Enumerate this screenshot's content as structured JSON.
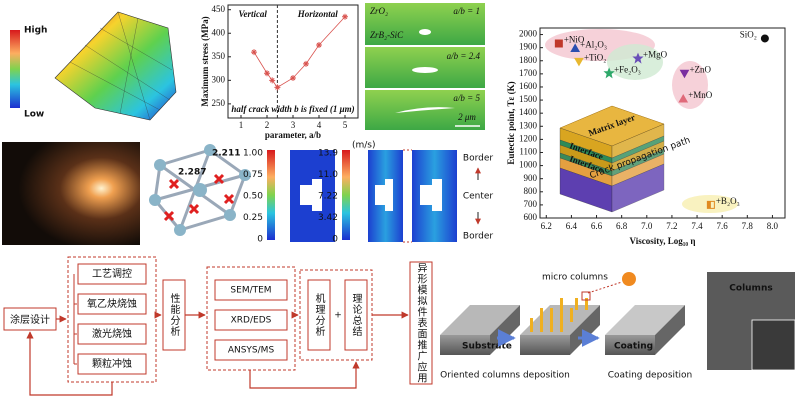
{
  "fe_model": {
    "high": "High",
    "low": "Low"
  },
  "stress_chart": {
    "type": "line",
    "y_label": "Maximum stress (MPa)",
    "x_label": "parameter, a/b",
    "left_region": "Vertical",
    "right_region": "Horizontal",
    "note": "half crack width b is fixed (1 μm)",
    "x": [
      1.5,
      2,
      2.2,
      2.4,
      3,
      3.5,
      4,
      5
    ],
    "values": [
      360,
      315,
      300,
      285,
      305,
      335,
      375,
      435
    ],
    "color": "#d9534f",
    "xlim": [
      0.5,
      5.5
    ],
    "ylim": [
      220,
      460
    ],
    "xticks": [
      1,
      2,
      3,
      4,
      5
    ],
    "yticks": [
      250,
      300,
      350,
      400,
      450
    ],
    "divider_x": 2.4
  },
  "crack_images": {
    "matrix": "ZrO₂",
    "coating": "ZrB₂-SiC",
    "ratio_1": "a/b = 1",
    "ratio_2": "a/b = 2.4",
    "ratio_3": "a/b = 5",
    "scale": "2 μm"
  },
  "eutectic_chart": {
    "type": "scatter",
    "y_label": "Eutectic point, Tε (K)",
    "x_label": "Viscosity, Log₁₀ η",
    "xlim": [
      6.15,
      8.1
    ],
    "ylim": [
      600,
      2050
    ],
    "xticks": [
      6.2,
      6.4,
      6.6,
      6.8,
      {
        "value": 7,
        "label": "7.0"
      },
      7.2,
      7.4,
      7.6,
      7.8,
      {
        "value": 8,
        "label": "8.0"
      }
    ],
    "yticks": [
      600,
      700,
      800,
      900,
      1000,
      1100,
      1200,
      1300,
      1400,
      1500,
      1600,
      1700,
      1800,
      1900,
      2000
    ],
    "points": [
      {
        "name": "+NiO",
        "x": 6.3,
        "y": 1932,
        "color": "#c0392b",
        "marker": "square"
      },
      {
        "name": "+Al₂O₃",
        "x": 6.43,
        "y": 1894,
        "color": "#2c4fb0",
        "marker": "triangle"
      },
      {
        "name": "+TiO₂",
        "x": 6.46,
        "y": 1795,
        "color": "#e8b830",
        "marker": "triangle-down"
      },
      {
        "name": "+MgO",
        "x": 6.93,
        "y": 1818,
        "color": "#6a4fb8",
        "marker": "star"
      },
      {
        "name": "+Fe₂O₃",
        "x": 6.7,
        "y": 1705,
        "color": "#2ea86a",
        "marker": "star"
      },
      {
        "name": "+ZnO",
        "x": 7.3,
        "y": 1705,
        "color": "#7b2fa0",
        "marker": "triangle-down"
      },
      {
        "name": "+MnO",
        "x": 7.29,
        "y": 1508,
        "color": "#e06a7a",
        "marker": "triangle"
      },
      {
        "name": "+B₂O₃",
        "x": 7.51,
        "y": 700,
        "color": "#e08a20",
        "marker": "half-square"
      },
      {
        "name": "SiO₂",
        "x": 7.94,
        "y": 1970,
        "color": "#111111",
        "marker": "circle"
      }
    ],
    "inset": {
      "top": "Matrix layer",
      "interface_1": "Interface",
      "interface_2": "Interface",
      "crack": "Crack propagation path"
    }
  },
  "crystal": {
    "bond_a": "2.211",
    "bond_b": "2.287"
  },
  "colorbar_ratio": [
    "1.00",
    "0.75",
    "0.50",
    "0.25",
    "0"
  ],
  "colorbar_speed": {
    "unit": "(m/s)",
    "ticks": [
      "13.9",
      "11.0",
      "7.22",
      "3.42",
      "0"
    ]
  },
  "simulation": {
    "border_top": "Border",
    "center": "Center",
    "border_bottom": "Border"
  },
  "flow": {
    "start": "涂层设计",
    "methods": [
      "工艺调控",
      "氧乙炔烧蚀",
      "激光烧蚀",
      "颗粒冲蚀"
    ],
    "analysis": "性能分析",
    "tools": [
      "SEM/TEM",
      "XRD/EDS",
      "ANSYS/MS"
    ],
    "mechanism": "机理分析",
    "plus": "+",
    "summary": "理论总结",
    "application": "异形模拟件表面推广应用"
  },
  "process": {
    "micro": "micro columns",
    "substrate": "Substrate",
    "coating": "Coating",
    "step_1": "Oriented columns deposition",
    "step_2": "Coating deposition",
    "sem": "Columns"
  }
}
